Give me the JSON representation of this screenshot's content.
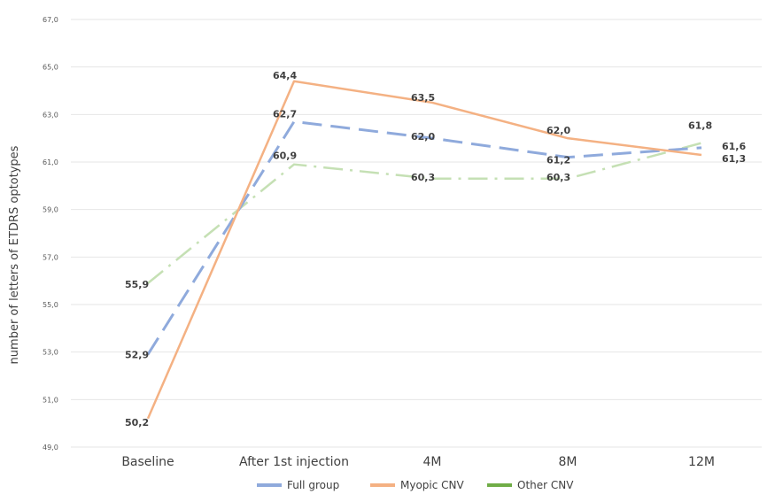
{
  "chart_data": {
    "type": "line",
    "title": "",
    "xlabel": "",
    "ylabel": "number of letters of ETDRS optotypes",
    "categories": [
      "Baseline",
      "After 1st injection",
      "4M",
      "8M",
      "12M"
    ],
    "ylim": [
      49.0,
      67.0
    ],
    "yticks": [
      "49,0",
      "51,0",
      "53,0",
      "55,0",
      "57,0",
      "59,0",
      "61,0",
      "63,0",
      "65,0",
      "67,0"
    ],
    "grid": true,
    "legend_position": "bottom",
    "series": [
      {
        "name": "Full group",
        "color": "#8FAADC",
        "dash": "dashed",
        "values": [
          52.9,
          62.7,
          62.0,
          61.2,
          61.6
        ],
        "labels": [
          "52,9",
          "62,7",
          "62,0",
          "61,2",
          "61,6"
        ]
      },
      {
        "name": "Myopic CNV",
        "color": "#F4B183",
        "dash": "solid",
        "values": [
          50.2,
          64.4,
          63.5,
          62.0,
          61.3
        ],
        "labels": [
          "50,2",
          "64,4",
          "63,5",
          "62,0",
          "61,3"
        ]
      },
      {
        "name": "Other CNV",
        "color": "#C5E0B4",
        "legend_color": "#70AD47",
        "dash": "dashdot",
        "values": [
          55.9,
          60.9,
          60.3,
          60.3,
          61.8
        ],
        "labels": [
          "55,9",
          "60,9",
          "60,3",
          "60,3",
          "61,8"
        ]
      }
    ]
  }
}
